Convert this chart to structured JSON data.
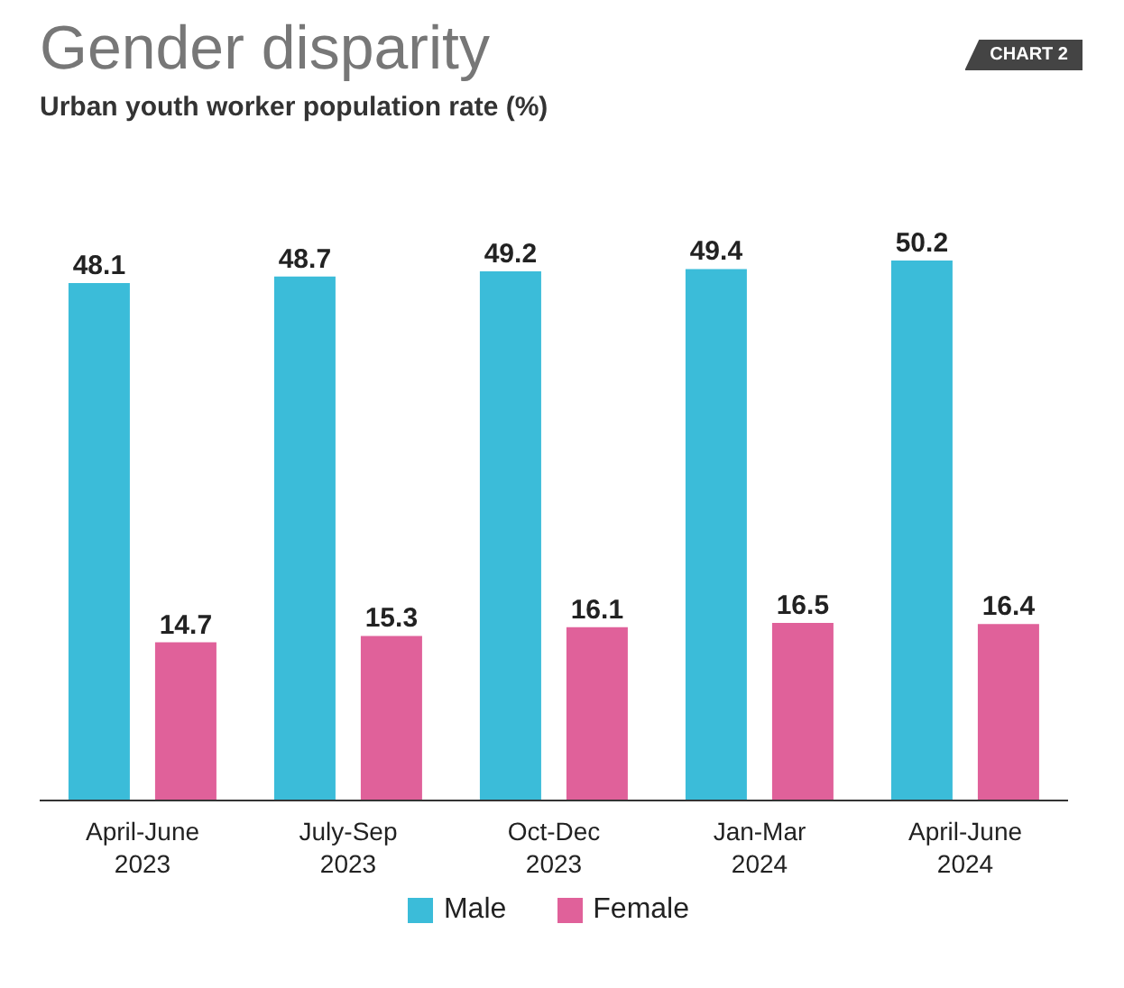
{
  "chart_data": {
    "type": "bar",
    "title": "Gender disparity",
    "subtitle": "Urban youth worker population rate (%)",
    "annotations": [
      "CHART 2"
    ],
    "categories": [
      "April-June 2023",
      "July-Sep 2023",
      "Oct-Dec 2023",
      "Jan-Mar 2024",
      "April-June 2024"
    ],
    "series": [
      {
        "name": "Male",
        "color": "#3bbcd9",
        "values": [
          48.1,
          48.7,
          49.2,
          49.4,
          50.2
        ]
      },
      {
        "name": "Female",
        "color": "#e0619a",
        "values": [
          14.7,
          15.3,
          16.1,
          16.5,
          16.4
        ]
      }
    ],
    "tick_labels": "x",
    "data_labels": true,
    "legend": "bottom"
  }
}
